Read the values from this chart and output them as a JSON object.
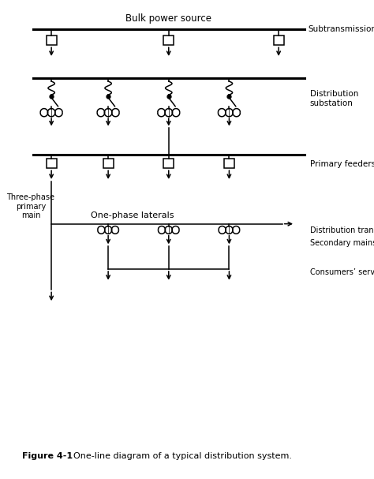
{
  "title": "Bulk power source",
  "subtitle": "Subtransmission",
  "label_dist_substation": "Distribution\nsubstation",
  "label_primary_feeders": "Primary feeders",
  "label_three_phase": "Three-phase\nprimary\nmain",
  "label_one_phase": "One-phase laterals",
  "label_dist_transformers": "Distribution transformers",
  "label_secondary_mains": "Secondary mains",
  "label_consumers": "Consumers’ services",
  "figure_caption_bold": "Figure 4-1",
  "figure_caption_rest": "  One-line diagram of a typical distribution system.",
  "line_color": "#000000",
  "bg_color": "#ffffff",
  "figsize": [
    4.74,
    6.07
  ],
  "dpi": 100
}
